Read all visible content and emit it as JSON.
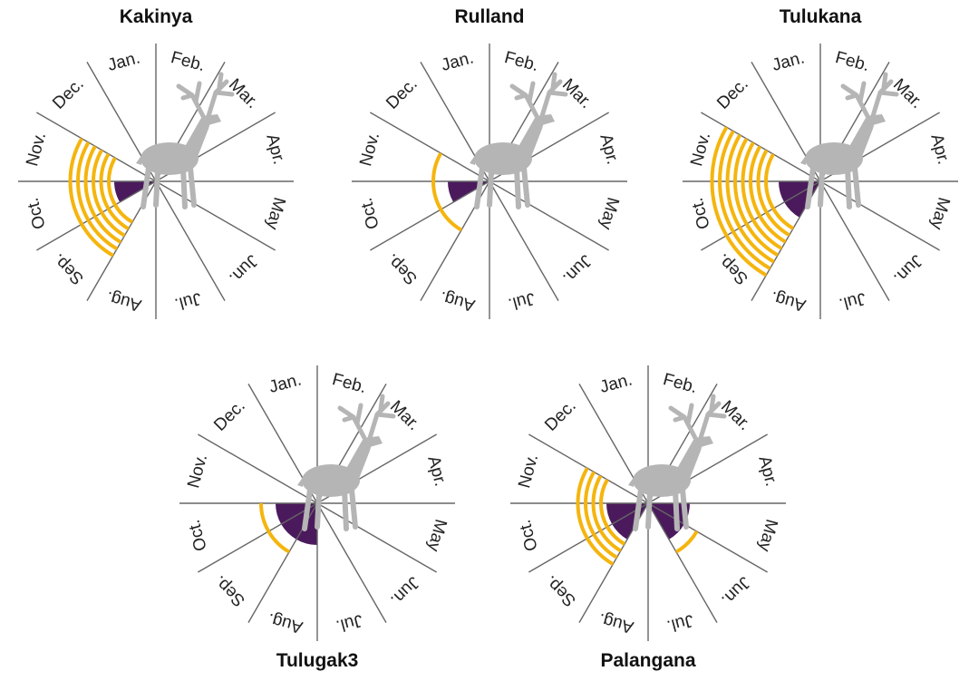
{
  "months": [
    "Jan.",
    "Feb.",
    "Mar.",
    "Apr.",
    "May",
    "Jun.",
    "Jul.",
    "Aug.",
    "Sep.",
    "Oct.",
    "Nov.",
    "Dec."
  ],
  "panels": [
    {
      "title": "Kakinya",
      "wedge": [
        0,
        0,
        0,
        0,
        0,
        0,
        0,
        0,
        0,
        1,
        0,
        0
      ],
      "rings": [
        0,
        0,
        0,
        0,
        0,
        0,
        0,
        0,
        6,
        6,
        6,
        0
      ]
    },
    {
      "title": "Rulland",
      "wedge": [
        0,
        0,
        0,
        0,
        0,
        0,
        0,
        0,
        0,
        1,
        0,
        0
      ],
      "rings": [
        0,
        0,
        0,
        0,
        0,
        0,
        0,
        0,
        1,
        1,
        1,
        0
      ]
    },
    {
      "title": "Tulukana",
      "wedge": [
        0,
        0,
        0,
        0,
        0,
        0,
        0,
        0,
        1,
        1,
        0,
        0
      ],
      "rings": [
        0,
        0,
        0,
        0,
        0,
        0,
        0,
        0,
        8,
        8,
        8,
        0
      ]
    },
    {
      "title": "Tulugak3",
      "wedge": [
        0,
        0,
        0,
        0,
        0,
        0,
        0,
        1,
        1,
        1,
        0,
        0
      ],
      "rings": [
        0,
        0,
        0,
        0,
        0,
        0,
        0,
        0,
        1,
        1,
        0,
        0
      ]
    },
    {
      "title": "Palangana",
      "wedge": [
        0,
        0,
        0,
        0,
        1,
        1,
        0,
        0,
        1,
        1,
        0,
        0
      ],
      "rings": [
        0,
        0,
        0,
        0,
        0,
        1,
        0,
        0,
        4,
        4,
        4,
        0
      ]
    }
  ]
}
